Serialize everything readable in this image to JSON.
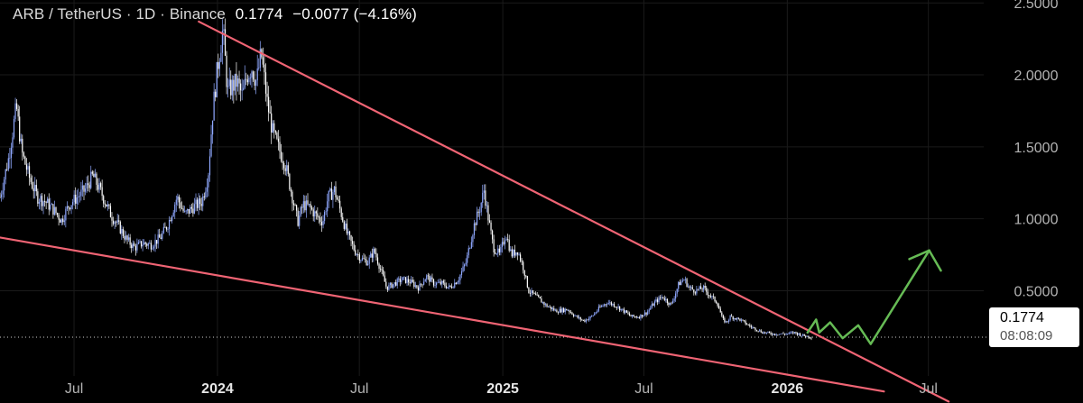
{
  "header": {
    "symbol": "ARB / TetherUS · 1D · Binance",
    "price": "0.1774",
    "change": "−0.0077 (−4.16%)"
  },
  "price_label": {
    "value": "0.1774",
    "countdown": "08:08:09"
  },
  "colors": {
    "background": "#000000",
    "candle": "#ffffff",
    "candle_accent": "#8fa8ff",
    "trendline": "#f06474",
    "projection": "#66bb55",
    "axis_text": "#b3b3b3",
    "grid": "#1a1a1a"
  },
  "chart_data": {
    "type": "line",
    "title": "ARB / TetherUS · 1D · Binance",
    "y_tick_labels": [
      "2.5000",
      "2.0000",
      "1.5000",
      "1.0000",
      "0.5000"
    ],
    "y_ticks": [
      2.5,
      2.0,
      1.5,
      1.0,
      0.5
    ],
    "ylim": [
      -0.28,
      2.52
    ],
    "x_tick_labels": [
      "Jul",
      "2024",
      "Jul",
      "2025",
      "Jul",
      "2026",
      "Jul"
    ],
    "x_ticks": [
      "2023-07-01",
      "2024-01-01",
      "2024-07-01",
      "2025-01-01",
      "2025-07-01",
      "2026-01-01",
      "2026-07-01"
    ],
    "xlim": [
      "2023-03-28",
      "2026-09-10"
    ],
    "current_price": 0.1774,
    "series": [
      {
        "kind": "price",
        "points": [
          [
            "2023-03-28",
            1.15
          ],
          [
            "2023-04-08",
            1.42
          ],
          [
            "2023-04-18",
            1.78
          ],
          [
            "2023-04-25",
            1.46
          ],
          [
            "2023-05-05",
            1.28
          ],
          [
            "2023-05-15",
            1.15
          ],
          [
            "2023-05-25",
            1.12
          ],
          [
            "2023-06-05",
            1.06
          ],
          [
            "2023-06-15",
            0.99
          ],
          [
            "2023-06-25",
            1.1
          ],
          [
            "2023-07-05",
            1.15
          ],
          [
            "2023-07-15",
            1.2
          ],
          [
            "2023-07-25",
            1.3
          ],
          [
            "2023-08-05",
            1.18
          ],
          [
            "2023-08-17",
            1.03
          ],
          [
            "2023-08-27",
            0.95
          ],
          [
            "2023-09-07",
            0.85
          ],
          [
            "2023-09-17",
            0.8
          ],
          [
            "2023-09-27",
            0.83
          ],
          [
            "2023-10-08",
            0.82
          ],
          [
            "2023-10-20",
            0.87
          ],
          [
            "2023-10-30",
            0.97
          ],
          [
            "2023-11-10",
            1.15
          ],
          [
            "2023-11-20",
            1.03
          ],
          [
            "2023-12-01",
            1.08
          ],
          [
            "2023-12-12",
            1.12
          ],
          [
            "2023-12-20",
            1.3
          ],
          [
            "2023-12-26",
            1.75
          ],
          [
            "2024-01-01",
            2.05
          ],
          [
            "2024-01-08",
            2.32
          ],
          [
            "2024-01-14",
            1.88
          ],
          [
            "2024-01-20",
            1.92
          ],
          [
            "2024-01-26",
            1.95
          ],
          [
            "2024-02-02",
            1.85
          ],
          [
            "2024-02-08",
            2.0
          ],
          [
            "2024-02-14",
            2.05
          ],
          [
            "2024-02-20",
            1.95
          ],
          [
            "2024-02-26",
            2.15
          ],
          [
            "2024-03-01",
            1.98
          ],
          [
            "2024-03-05",
            1.8
          ],
          [
            "2024-03-12",
            1.6
          ],
          [
            "2024-03-20",
            1.48
          ],
          [
            "2024-03-27",
            1.4
          ],
          [
            "2024-04-05",
            1.18
          ],
          [
            "2024-04-13",
            0.98
          ],
          [
            "2024-04-20",
            1.1
          ],
          [
            "2024-04-28",
            1.08
          ],
          [
            "2024-05-07",
            1.02
          ],
          [
            "2024-05-15",
            0.98
          ],
          [
            "2024-05-22",
            1.15
          ],
          [
            "2024-05-30",
            1.2
          ],
          [
            "2024-06-07",
            1.05
          ],
          [
            "2024-06-15",
            0.9
          ],
          [
            "2024-06-25",
            0.78
          ],
          [
            "2024-07-04",
            0.72
          ],
          [
            "2024-07-12",
            0.7
          ],
          [
            "2024-07-20",
            0.78
          ],
          [
            "2024-07-30",
            0.62
          ],
          [
            "2024-08-05",
            0.52
          ],
          [
            "2024-08-15",
            0.55
          ],
          [
            "2024-08-25",
            0.58
          ],
          [
            "2024-09-05",
            0.56
          ],
          [
            "2024-09-15",
            0.52
          ],
          [
            "2024-09-25",
            0.6
          ],
          [
            "2024-10-05",
            0.55
          ],
          [
            "2024-10-15",
            0.55
          ],
          [
            "2024-10-25",
            0.52
          ],
          [
            "2024-11-05",
            0.58
          ],
          [
            "2024-11-15",
            0.7
          ],
          [
            "2024-11-25",
            0.95
          ],
          [
            "2024-12-03",
            1.08
          ],
          [
            "2024-12-08",
            1.2
          ],
          [
            "2024-12-12",
            1.05
          ],
          [
            "2024-12-20",
            0.8
          ],
          [
            "2024-12-28",
            0.75
          ],
          [
            "2025-01-05",
            0.9
          ],
          [
            "2025-01-12",
            0.75
          ],
          [
            "2025-01-20",
            0.78
          ],
          [
            "2025-01-28",
            0.65
          ],
          [
            "2025-02-03",
            0.5
          ],
          [
            "2025-02-15",
            0.45
          ],
          [
            "2025-02-25",
            0.4
          ],
          [
            "2025-03-10",
            0.36
          ],
          [
            "2025-03-25",
            0.37
          ],
          [
            "2025-04-05",
            0.32
          ],
          [
            "2025-04-15",
            0.29
          ],
          [
            "2025-04-25",
            0.32
          ],
          [
            "2025-05-05",
            0.38
          ],
          [
            "2025-05-15",
            0.42
          ],
          [
            "2025-05-25",
            0.4
          ],
          [
            "2025-06-05",
            0.36
          ],
          [
            "2025-06-15",
            0.32
          ],
          [
            "2025-06-25",
            0.32
          ],
          [
            "2025-07-05",
            0.35
          ],
          [
            "2025-07-15",
            0.42
          ],
          [
            "2025-07-25",
            0.46
          ],
          [
            "2025-08-05",
            0.4
          ],
          [
            "2025-08-15",
            0.55
          ],
          [
            "2025-08-22",
            0.58
          ],
          [
            "2025-08-28",
            0.52
          ],
          [
            "2025-09-05",
            0.5
          ],
          [
            "2025-09-15",
            0.52
          ],
          [
            "2025-09-25",
            0.46
          ],
          [
            "2025-10-03",
            0.42
          ],
          [
            "2025-10-10",
            0.3
          ],
          [
            "2025-10-15",
            0.28
          ],
          [
            "2025-10-20",
            0.32
          ],
          [
            "2025-11-01",
            0.3
          ],
          [
            "2025-11-15",
            0.25
          ],
          [
            "2025-12-01",
            0.21
          ],
          [
            "2025-12-15",
            0.2
          ],
          [
            "2026-01-01",
            0.2
          ],
          [
            "2026-01-10",
            0.21
          ],
          [
            "2026-01-20",
            0.19
          ],
          [
            "2026-02-02",
            0.1774
          ]
        ]
      },
      {
        "kind": "trendline",
        "points": [
          [
            "2023-12-08",
            2.37
          ],
          [
            "2026-07-27",
            -0.27
          ]
        ]
      },
      {
        "kind": "trendline",
        "points": [
          [
            "2023-03-28",
            0.87
          ],
          [
            "2026-05-05",
            -0.2
          ]
        ]
      },
      {
        "kind": "projection",
        "points": [
          [
            "2026-01-27",
            0.21
          ],
          [
            "2026-02-07",
            0.3
          ],
          [
            "2026-02-11",
            0.21
          ],
          [
            "2026-02-25",
            0.28
          ],
          [
            "2026-03-13",
            0.17
          ],
          [
            "2026-04-02",
            0.26
          ],
          [
            "2026-04-18",
            0.13
          ],
          [
            "2026-07-02",
            0.78
          ],
          [
            "2026-07-17",
            0.64
          ]
        ]
      }
    ]
  }
}
